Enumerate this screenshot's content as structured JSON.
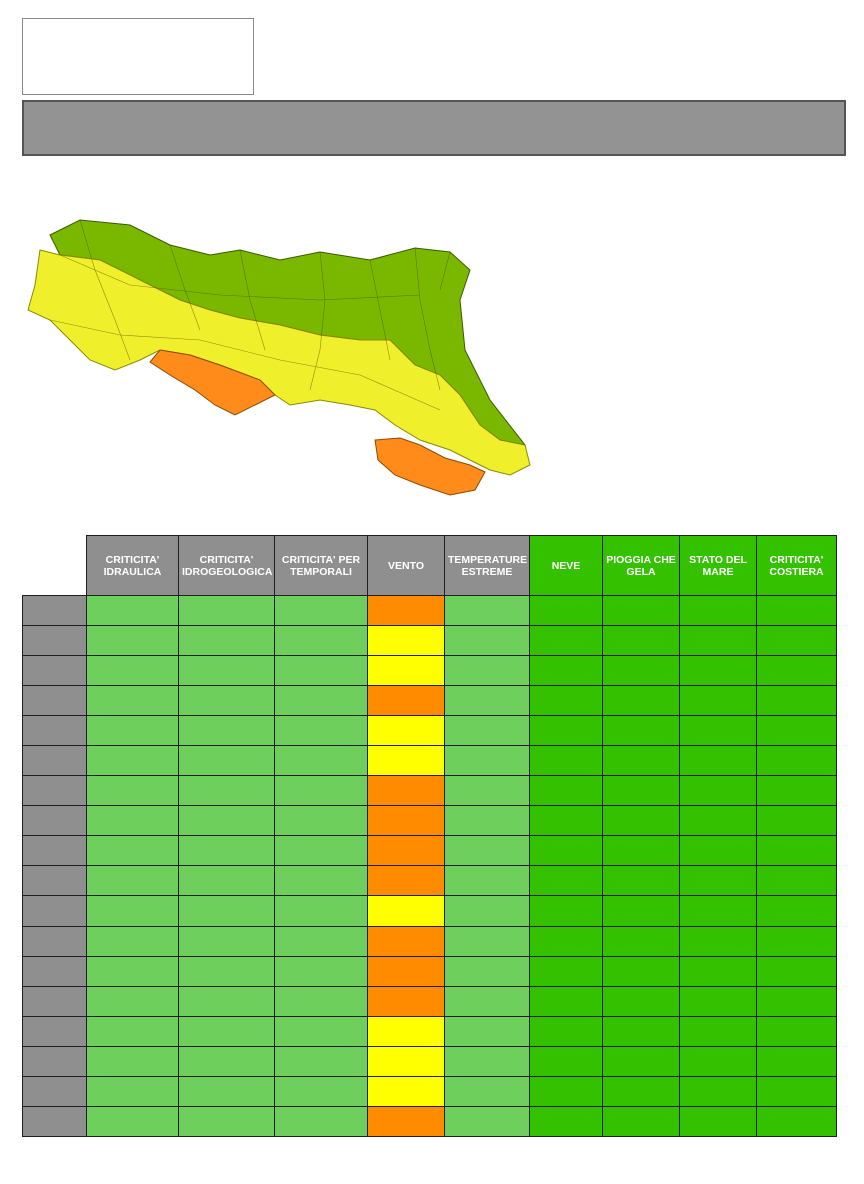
{
  "header": {
    "logo_text": "",
    "title": ""
  },
  "map": {
    "region_colors": {
      "green": "#7ab800",
      "yellow": "#f0ef2b",
      "orange": "#ff8c1a"
    }
  },
  "table": {
    "columns": [
      {
        "label": "CRITICITA' IDRAULICA",
        "style": "grey"
      },
      {
        "label": "CRITICITA' IDROGEOLOGICA",
        "style": "grey"
      },
      {
        "label": "CRITICITA' PER TEMPORALI",
        "style": "grey"
      },
      {
        "label": "VENTO",
        "style": "grey"
      },
      {
        "label": "TEMPERATURE ESTREME",
        "style": "grey"
      },
      {
        "label": "NEVE",
        "style": "green"
      },
      {
        "label": "PIOGGIA CHE GELA",
        "style": "green"
      },
      {
        "label": "STATO DEL MARE",
        "style": "green"
      },
      {
        "label": "CRITICITA' COSTIERA",
        "style": "green"
      }
    ],
    "vento_levels": [
      "orange",
      "yellow",
      "yellow",
      "orange",
      "yellow",
      "yellow",
      "orange",
      "orange",
      "orange",
      "orange",
      "yellow",
      "orange",
      "orange",
      "orange",
      "yellow",
      "yellow",
      "yellow",
      "orange"
    ],
    "level_colors": {
      "green_light": "#6fcf5c",
      "green_dark": "#33c100",
      "yellow": "#ffff00",
      "orange": "#ff8c00"
    }
  }
}
